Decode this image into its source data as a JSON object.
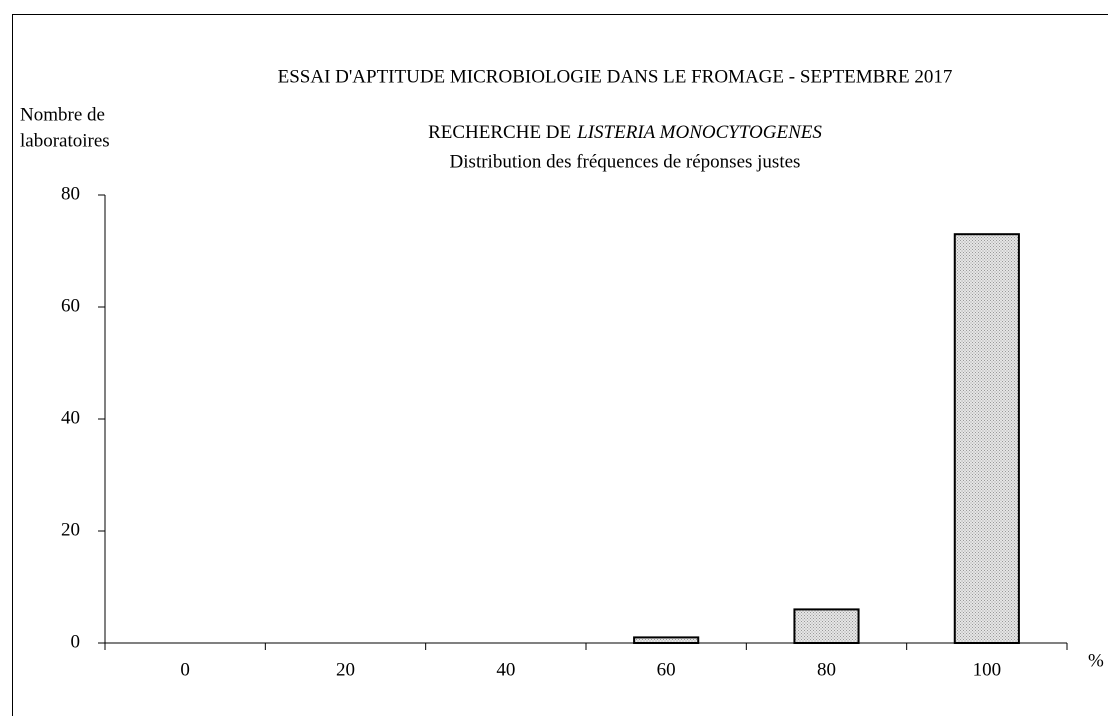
{
  "chart_data": {
    "type": "bar",
    "title": "ESSAI D'APTITUDE MICROBIOLOGIE DANS LE FROMAGE - SEPTEMBRE 2017",
    "subtitle": "RECHERCHE DE",
    "subtitle_italic": "LISTERIA MONOCYTOGENES",
    "subtitle2": "Distribution des fréquences de réponses justes",
    "y_label": [
      "Nombre de",
      "laboratoires"
    ],
    "x_label": "%",
    "categories": [
      "0",
      "20",
      "40",
      "60",
      "80",
      "100"
    ],
    "values": [
      0,
      0,
      0,
      1,
      6,
      73
    ],
    "color": "#e6e6e6",
    "ylim": [
      0,
      80
    ],
    "yticks": [
      0,
      20,
      40,
      60,
      80
    ],
    "grid": false
  }
}
